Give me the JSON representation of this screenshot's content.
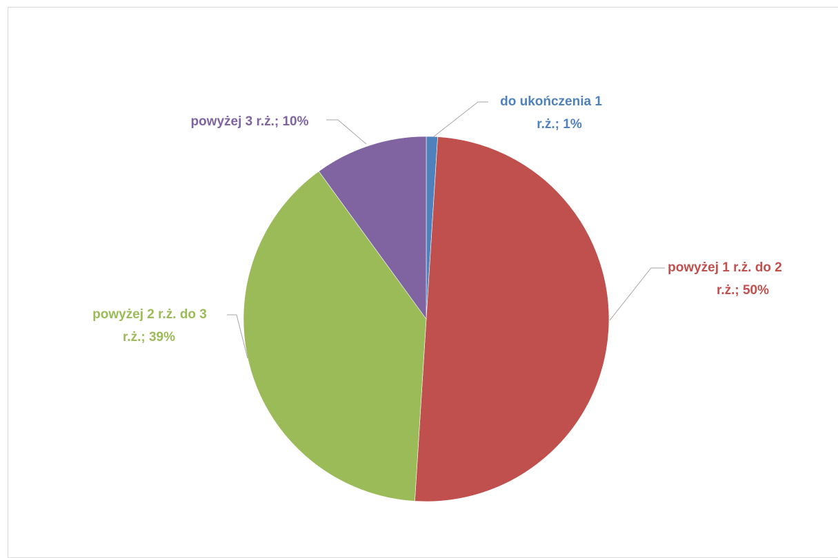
{
  "chart_data": {
    "type": "pie",
    "title": "",
    "start_angle_deg": 0,
    "direction": "clockwise",
    "legend": "none",
    "slices": [
      {
        "label": "do ukończenia 1 r.ż.",
        "value": 1,
        "color": "#4f81bd",
        "data_label_lines": [
          "do ukończenia 1",
          "r.ż.; 1%"
        ]
      },
      {
        "label": "powyżej 1 r.ż. do 2 r.ż.",
        "value": 50,
        "color": "#c0504d",
        "data_label_lines": [
          "powyżej 1 r.ż. do 2",
          "r.ż.; 50%"
        ]
      },
      {
        "label": "powyżej 2 r.ż. do 3 r.ż.",
        "value": 39,
        "color": "#9bbb59",
        "data_label_lines": [
          "powyżej 2 r.ż. do 3",
          "r.ż.; 39%"
        ]
      },
      {
        "label": "powyżej 3 r.ż.",
        "value": 10,
        "color": "#8064a2",
        "data_label_lines": [
          "powyżej 3 r.ż.; 10%"
        ]
      }
    ]
  }
}
